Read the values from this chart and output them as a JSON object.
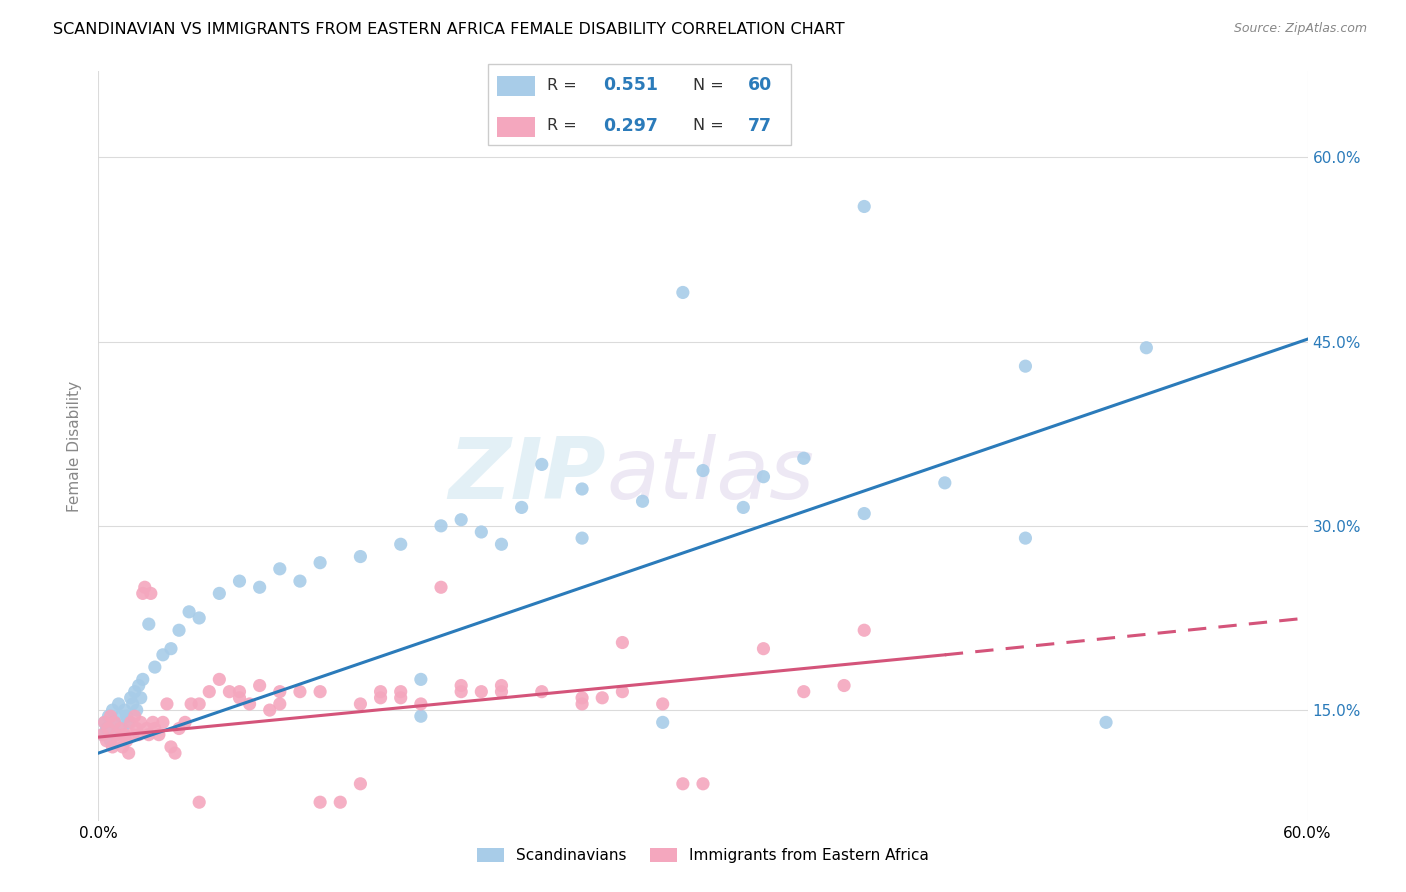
{
  "title": "SCANDINAVIAN VS IMMIGRANTS FROM EASTERN AFRICA FEMALE DISABILITY CORRELATION CHART",
  "source": "Source: ZipAtlas.com",
  "ylabel": "Female Disability",
  "right_yticks": [
    "15.0%",
    "30.0%",
    "45.0%",
    "60.0%"
  ],
  "right_ytick_vals": [
    0.15,
    0.3,
    0.45,
    0.6
  ],
  "xlim": [
    0.0,
    0.6
  ],
  "ylim": [
    0.06,
    0.67
  ],
  "blue_color": "#a8cce8",
  "pink_color": "#f4a7be",
  "blue_line_color": "#2b7bba",
  "pink_line_color": "#d4547a",
  "scand_x": [
    0.002,
    0.003,
    0.004,
    0.005,
    0.006,
    0.007,
    0.008,
    0.009,
    0.01,
    0.011,
    0.012,
    0.013,
    0.014,
    0.015,
    0.016,
    0.017,
    0.018,
    0.019,
    0.02,
    0.021,
    0.022,
    0.025,
    0.028,
    0.032,
    0.036,
    0.04,
    0.045,
    0.05,
    0.06,
    0.07,
    0.08,
    0.09,
    0.1,
    0.11,
    0.13,
    0.15,
    0.17,
    0.19,
    0.21,
    0.24,
    0.27,
    0.3,
    0.33,
    0.24,
    0.18,
    0.32,
    0.2,
    0.35,
    0.16,
    0.28,
    0.38,
    0.42,
    0.46,
    0.5,
    0.38,
    0.29,
    0.22,
    0.16,
    0.46,
    0.52
  ],
  "scand_y": [
    0.13,
    0.14,
    0.135,
    0.145,
    0.125,
    0.15,
    0.14,
    0.13,
    0.155,
    0.145,
    0.135,
    0.15,
    0.145,
    0.14,
    0.16,
    0.155,
    0.165,
    0.15,
    0.17,
    0.16,
    0.175,
    0.22,
    0.185,
    0.195,
    0.2,
    0.215,
    0.23,
    0.225,
    0.245,
    0.255,
    0.25,
    0.265,
    0.255,
    0.27,
    0.275,
    0.285,
    0.3,
    0.295,
    0.315,
    0.33,
    0.32,
    0.345,
    0.34,
    0.29,
    0.305,
    0.315,
    0.285,
    0.355,
    0.175,
    0.14,
    0.31,
    0.335,
    0.29,
    0.14,
    0.56,
    0.49,
    0.35,
    0.145,
    0.43,
    0.445
  ],
  "immig_x": [
    0.002,
    0.003,
    0.004,
    0.005,
    0.006,
    0.007,
    0.008,
    0.009,
    0.01,
    0.011,
    0.012,
    0.013,
    0.014,
    0.015,
    0.016,
    0.017,
    0.018,
    0.019,
    0.02,
    0.021,
    0.022,
    0.023,
    0.024,
    0.025,
    0.026,
    0.027,
    0.028,
    0.03,
    0.032,
    0.034,
    0.036,
    0.038,
    0.04,
    0.043,
    0.046,
    0.05,
    0.055,
    0.06,
    0.065,
    0.07,
    0.075,
    0.08,
    0.085,
    0.09,
    0.1,
    0.11,
    0.12,
    0.13,
    0.14,
    0.15,
    0.16,
    0.18,
    0.2,
    0.22,
    0.24,
    0.26,
    0.29,
    0.33,
    0.37,
    0.38,
    0.17,
    0.14,
    0.24,
    0.28,
    0.18,
    0.2,
    0.25,
    0.35,
    0.3,
    0.26,
    0.19,
    0.15,
    0.13,
    0.11,
    0.09,
    0.07,
    0.05
  ],
  "immig_y": [
    0.13,
    0.14,
    0.125,
    0.135,
    0.145,
    0.12,
    0.14,
    0.13,
    0.125,
    0.135,
    0.12,
    0.13,
    0.125,
    0.115,
    0.14,
    0.13,
    0.145,
    0.135,
    0.13,
    0.14,
    0.245,
    0.25,
    0.135,
    0.13,
    0.245,
    0.14,
    0.135,
    0.13,
    0.14,
    0.155,
    0.12,
    0.115,
    0.135,
    0.14,
    0.155,
    0.075,
    0.165,
    0.175,
    0.165,
    0.165,
    0.155,
    0.17,
    0.15,
    0.165,
    0.165,
    0.075,
    0.075,
    0.09,
    0.16,
    0.165,
    0.155,
    0.17,
    0.165,
    0.165,
    0.155,
    0.165,
    0.09,
    0.2,
    0.17,
    0.215,
    0.25,
    0.165,
    0.16,
    0.155,
    0.165,
    0.17,
    0.16,
    0.165,
    0.09,
    0.205,
    0.165,
    0.16,
    0.155,
    0.165,
    0.155,
    0.16,
    0.155
  ],
  "scand_line": [
    [
      0.0,
      0.6
    ],
    [
      0.115,
      0.452
    ]
  ],
  "immig_line_solid": [
    [
      0.0,
      0.42
    ],
    [
      0.128,
      0.195
    ]
  ],
  "immig_line_dash": [
    [
      0.42,
      0.6
    ],
    [
      0.195,
      0.225
    ]
  ]
}
